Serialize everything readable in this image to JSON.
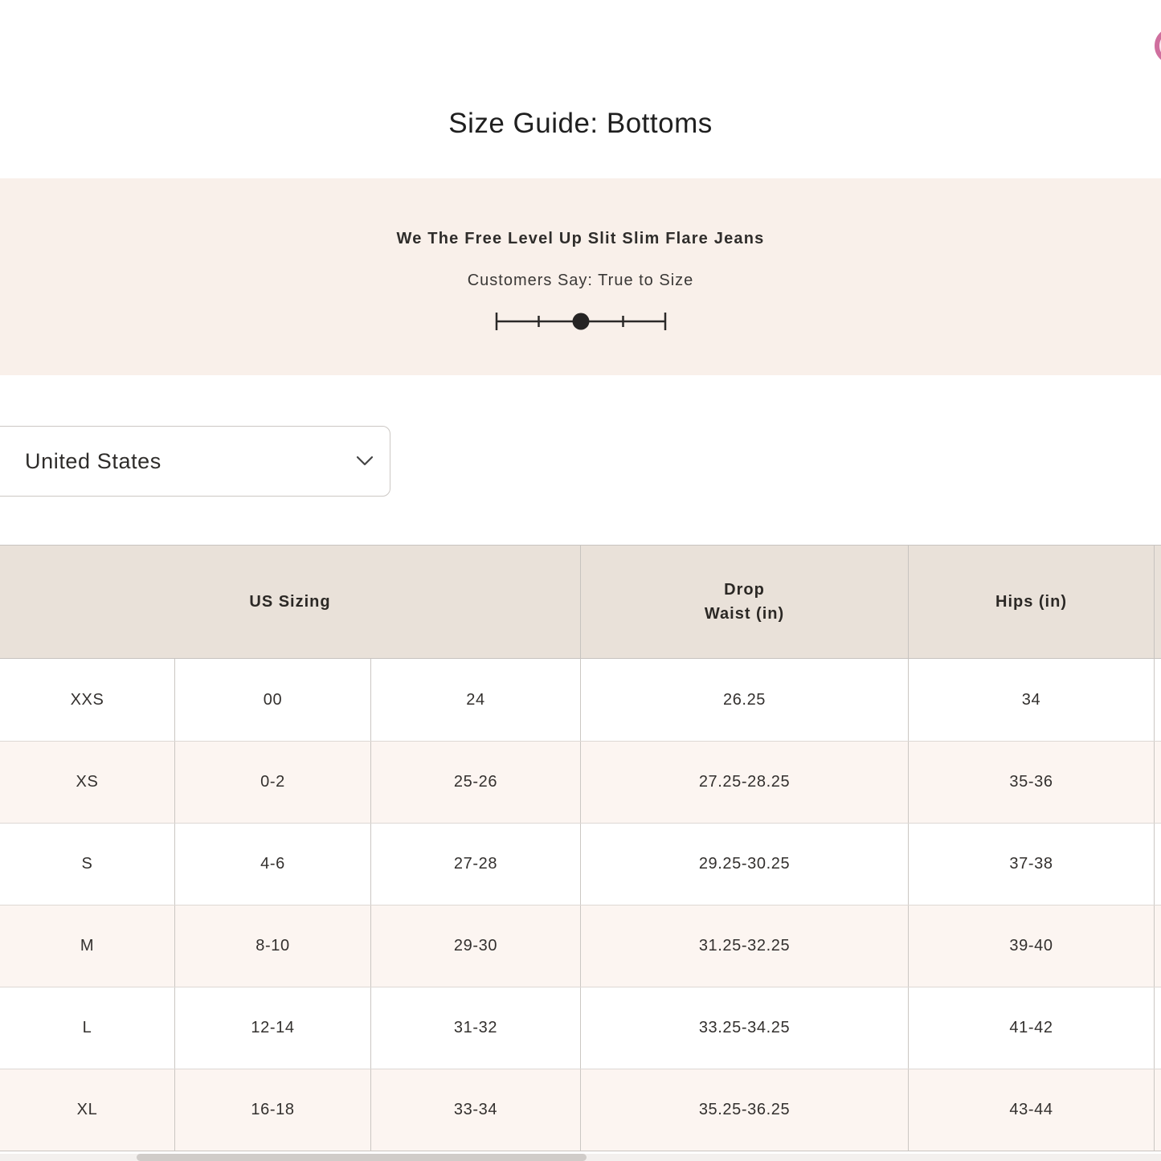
{
  "page": {
    "title": "Size Guide: Bottoms"
  },
  "product": {
    "name": "We The Free Level Up Slit Slim Flare Jeans",
    "fit_caption": "Customers Say: True to Size",
    "fit_scale": {
      "positions": 5,
      "selected_index": 2
    }
  },
  "region_selector": {
    "value": "United States"
  },
  "size_table": {
    "header_us": "US Sizing",
    "header_drop_line1": "Drop",
    "header_drop_line2": "Waist (in)",
    "header_hips": "Hips (in)",
    "rows": [
      [
        "XXS",
        "00",
        "24",
        "26.25",
        "34"
      ],
      [
        "XS",
        "0-2",
        "25-26",
        "27.25-28.25",
        "35-36"
      ],
      [
        "S",
        "4-6",
        "27-28",
        "29.25-30.25",
        "37-38"
      ],
      [
        "M",
        "8-10",
        "29-30",
        "31.25-32.25",
        "39-40"
      ],
      [
        "L",
        "12-14",
        "31-32",
        "33.25-34.25",
        "41-42"
      ],
      [
        "XL",
        "16-18",
        "33-34",
        "35.25-36.25",
        "43-44"
      ]
    ]
  },
  "colors": {
    "accent_pink": "#cf6f9e",
    "band_bg": "#f9f0ea",
    "table_header_bg": "#e9e1d9",
    "row_alt_bg": "#fcf5f1",
    "slider_ink": "#2b2928"
  }
}
